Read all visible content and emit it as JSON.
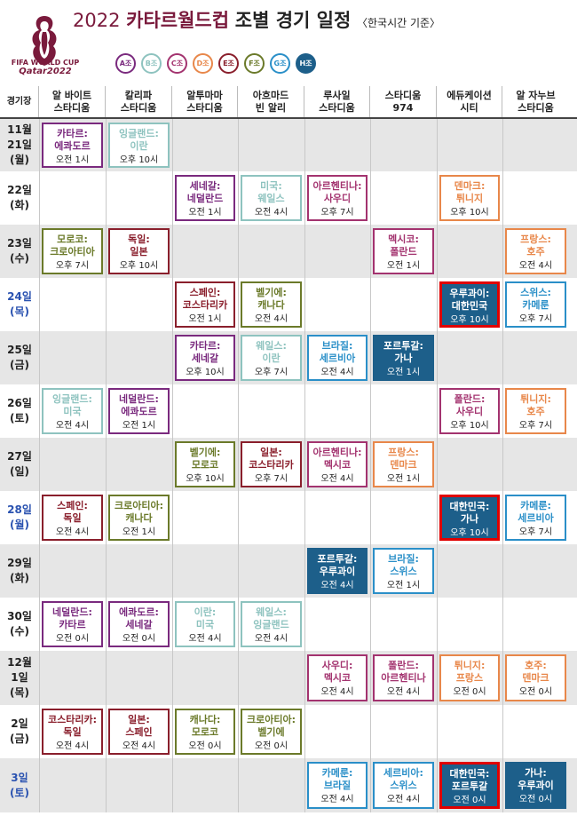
{
  "header": {
    "title_year": "2022",
    "title_cup": "카타르월드컵",
    "title_schedule": "조별 경기 일정",
    "title_note": "〈한국시간 기준〉",
    "logo_line1": "FIFA WORLD CUP",
    "logo_line2": "Qatar2022"
  },
  "groups": [
    {
      "label": "A조",
      "color": "#7a2a7e",
      "filled": false
    },
    {
      "label": "B조",
      "color": "#8ec3bf",
      "filled": false
    },
    {
      "label": "C조",
      "color": "#a3336f",
      "filled": false
    },
    {
      "label": "D조",
      "color": "#e8874a",
      "filled": false
    },
    {
      "label": "E조",
      "color": "#8a1f2c",
      "filled": false
    },
    {
      "label": "F조",
      "color": "#6b7a2a",
      "filled": false
    },
    {
      "label": "G조",
      "color": "#2a8fc8",
      "filled": false
    },
    {
      "label": "H조",
      "color": "#1d5f8a",
      "filled": true
    }
  ],
  "columns": {
    "venue_label": "경기장",
    "venues": [
      "알 바이트\n스타디움",
      "칼리파\n스타디움",
      "알투마마\n스타디움",
      "아흐마드\n빈 알리",
      "루사일\n스타디움",
      "스타디움\n974",
      "에듀케이션\n시티",
      "알 자누브\n스타디움"
    ]
  },
  "rows": [
    {
      "date": "11월\n21일\n(월)",
      "blue": false
    },
    {
      "date": "22일\n(화)",
      "blue": false
    },
    {
      "date": "23일\n(수)",
      "blue": false
    },
    {
      "date": "24일\n(목)",
      "blue": true
    },
    {
      "date": "25일\n(금)",
      "blue": false
    },
    {
      "date": "26일\n(토)",
      "blue": false
    },
    {
      "date": "27일\n(일)",
      "blue": false
    },
    {
      "date": "28일\n(월)",
      "blue": true
    },
    {
      "date": "29일\n(화)",
      "blue": false
    },
    {
      "date": "30일\n(수)",
      "blue": false
    },
    {
      "date": "12월\n1일\n(목)",
      "blue": false
    },
    {
      "date": "2일\n(금)",
      "blue": false
    },
    {
      "date": "3일\n(토)",
      "blue": true
    }
  ],
  "matches": [
    {
      "row": 0,
      "col": 0,
      "teams": "카타르:\n에콰도르",
      "time": "오전 1시",
      "group": "A",
      "highlight": false
    },
    {
      "row": 0,
      "col": 1,
      "teams": "잉글랜드:\n이란",
      "time": "오후 10시",
      "group": "B",
      "highlight": false
    },
    {
      "row": 1,
      "col": 2,
      "teams": "세네갈:\n네덜란드",
      "time": "오전 1시",
      "group": "A",
      "highlight": false
    },
    {
      "row": 1,
      "col": 3,
      "teams": "미국:\n웨일스",
      "time": "오전 4시",
      "group": "B",
      "highlight": false
    },
    {
      "row": 1,
      "col": 4,
      "teams": "아르헨티나:\n사우디",
      "time": "오후 7시",
      "group": "C",
      "highlight": false
    },
    {
      "row": 1,
      "col": 6,
      "teams": "덴마크:\n튀니지",
      "time": "오후 10시",
      "group": "D",
      "highlight": false
    },
    {
      "row": 2,
      "col": 0,
      "teams": "모로코:\n크로아티아",
      "time": "오후 7시",
      "group": "F",
      "highlight": false
    },
    {
      "row": 2,
      "col": 1,
      "teams": "독일:\n일본",
      "time": "오후 10시",
      "group": "E",
      "highlight": false
    },
    {
      "row": 2,
      "col": 5,
      "teams": "멕시코:\n폴란드",
      "time": "오전 1시",
      "group": "C",
      "highlight": false
    },
    {
      "row": 2,
      "col": 7,
      "teams": "프랑스:\n호주",
      "time": "오전 4시",
      "group": "D",
      "highlight": false
    },
    {
      "row": 3,
      "col": 2,
      "teams": "스페인:\n코스타리카",
      "time": "오전 1시",
      "group": "E",
      "highlight": false
    },
    {
      "row": 3,
      "col": 3,
      "teams": "벨기에:\n캐나다",
      "time": "오전 4시",
      "group": "F",
      "highlight": false
    },
    {
      "row": 3,
      "col": 6,
      "teams": "우루과이:\n대한민국",
      "time": "오후 10시",
      "group": "H",
      "highlight": true
    },
    {
      "row": 3,
      "col": 7,
      "teams": "스위스:\n카메룬",
      "time": "오후 7시",
      "group": "G",
      "highlight": false
    },
    {
      "row": 4,
      "col": 2,
      "teams": "카타르:\n세네갈",
      "time": "오후 10시",
      "group": "A",
      "highlight": false
    },
    {
      "row": 4,
      "col": 3,
      "teams": "웨일스:\n이란",
      "time": "오후 7시",
      "group": "B",
      "highlight": false
    },
    {
      "row": 4,
      "col": 4,
      "teams": "브라질:\n세르비아",
      "time": "오전 4시",
      "group": "G",
      "highlight": false
    },
    {
      "row": 4,
      "col": 5,
      "teams": "포르투갈:\n가나",
      "time": "오전 1시",
      "group": "H",
      "highlight": false
    },
    {
      "row": 5,
      "col": 0,
      "teams": "잉글랜드:\n미국",
      "time": "오전 4시",
      "group": "B",
      "highlight": false
    },
    {
      "row": 5,
      "col": 1,
      "teams": "네덜란드:\n에콰도르",
      "time": "오전 1시",
      "group": "A",
      "highlight": false
    },
    {
      "row": 5,
      "col": 6,
      "teams": "폴란드:\n사우디",
      "time": "오후 10시",
      "group": "C",
      "highlight": false
    },
    {
      "row": 5,
      "col": 7,
      "teams": "튀니지:\n호주",
      "time": "오후 7시",
      "group": "D",
      "highlight": false
    },
    {
      "row": 6,
      "col": 2,
      "teams": "벨기에:\n모로코",
      "time": "오후 10시",
      "group": "F",
      "highlight": false
    },
    {
      "row": 6,
      "col": 3,
      "teams": "일본:\n코스타리카",
      "time": "오후 7시",
      "group": "E",
      "highlight": false
    },
    {
      "row": 6,
      "col": 4,
      "teams": "아르헨티나:\n멕시코",
      "time": "오전 4시",
      "group": "C",
      "highlight": false
    },
    {
      "row": 6,
      "col": 5,
      "teams": "프랑스:\n덴마크",
      "time": "오전 1시",
      "group": "D",
      "highlight": false
    },
    {
      "row": 7,
      "col": 0,
      "teams": "스페인:\n독일",
      "time": "오전 4시",
      "group": "E",
      "highlight": false
    },
    {
      "row": 7,
      "col": 1,
      "teams": "크로아티아:\n캐나다",
      "time": "오전 1시",
      "group": "F",
      "highlight": false
    },
    {
      "row": 7,
      "col": 6,
      "teams": "대한민국:\n가나",
      "time": "오후 10시",
      "group": "H",
      "highlight": true
    },
    {
      "row": 7,
      "col": 7,
      "teams": "카메룬:\n세르비아",
      "time": "오후 7시",
      "group": "G",
      "highlight": false
    },
    {
      "row": 8,
      "col": 4,
      "teams": "포르투갈:\n우루과이",
      "time": "오전 4시",
      "group": "H",
      "highlight": false
    },
    {
      "row": 8,
      "col": 5,
      "teams": "브라질:\n스위스",
      "time": "오전 1시",
      "group": "G",
      "highlight": false
    },
    {
      "row": 9,
      "col": 0,
      "teams": "네덜란드:\n카타르",
      "time": "오전 0시",
      "group": "A",
      "highlight": false
    },
    {
      "row": 9,
      "col": 1,
      "teams": "에콰도르:\n세네갈",
      "time": "오전 0시",
      "group": "A",
      "highlight": false
    },
    {
      "row": 9,
      "col": 2,
      "teams": "이란:\n미국",
      "time": "오전 4시",
      "group": "B",
      "highlight": false
    },
    {
      "row": 9,
      "col": 3,
      "teams": "웨일스:\n잉글랜드",
      "time": "오전 4시",
      "group": "B",
      "highlight": false
    },
    {
      "row": 10,
      "col": 4,
      "teams": "사우디:\n멕시코",
      "time": "오전 4시",
      "group": "C",
      "highlight": false
    },
    {
      "row": 10,
      "col": 5,
      "teams": "폴란드:\n아르헨티나",
      "time": "오전 4시",
      "group": "C",
      "highlight": false
    },
    {
      "row": 10,
      "col": 6,
      "teams": "튀니지:\n프랑스",
      "time": "오전 0시",
      "group": "D",
      "highlight": false
    },
    {
      "row": 10,
      "col": 7,
      "teams": "호주:\n덴마크",
      "time": "오전 0시",
      "group": "D",
      "highlight": false
    },
    {
      "row": 11,
      "col": 0,
      "teams": "코스타리카:\n독일",
      "time": "오전 4시",
      "group": "E",
      "highlight": false
    },
    {
      "row": 11,
      "col": 1,
      "teams": "일본:\n스페인",
      "time": "오전 4시",
      "group": "E",
      "highlight": false
    },
    {
      "row": 11,
      "col": 2,
      "teams": "캐나다:\n모로코",
      "time": "오전 0시",
      "group": "F",
      "highlight": false
    },
    {
      "row": 11,
      "col": 3,
      "teams": "크로아티아:\n벨기에",
      "time": "오전 0시",
      "group": "F",
      "highlight": false
    },
    {
      "row": 12,
      "col": 4,
      "teams": "카메룬:\n브라질",
      "time": "오전 4시",
      "group": "G",
      "highlight": false
    },
    {
      "row": 12,
      "col": 5,
      "teams": "세르비아:\n스위스",
      "time": "오전 4시",
      "group": "G",
      "highlight": false
    },
    {
      "row": 12,
      "col": 6,
      "teams": "대한민국:\n포르투갈",
      "time": "오전 0시",
      "group": "H",
      "highlight": true
    },
    {
      "row": 12,
      "col": 7,
      "teams": "가나:\n우루과이",
      "time": "오전 0시",
      "group": "H",
      "highlight": false
    }
  ],
  "group_colors": {
    "A": "#7a2a7e",
    "B": "#8ec3bf",
    "C": "#a3336f",
    "D": "#e8874a",
    "E": "#8a1f2c",
    "F": "#6b7a2a",
    "G": "#2a8fc8",
    "H": "#1d5f8a"
  }
}
